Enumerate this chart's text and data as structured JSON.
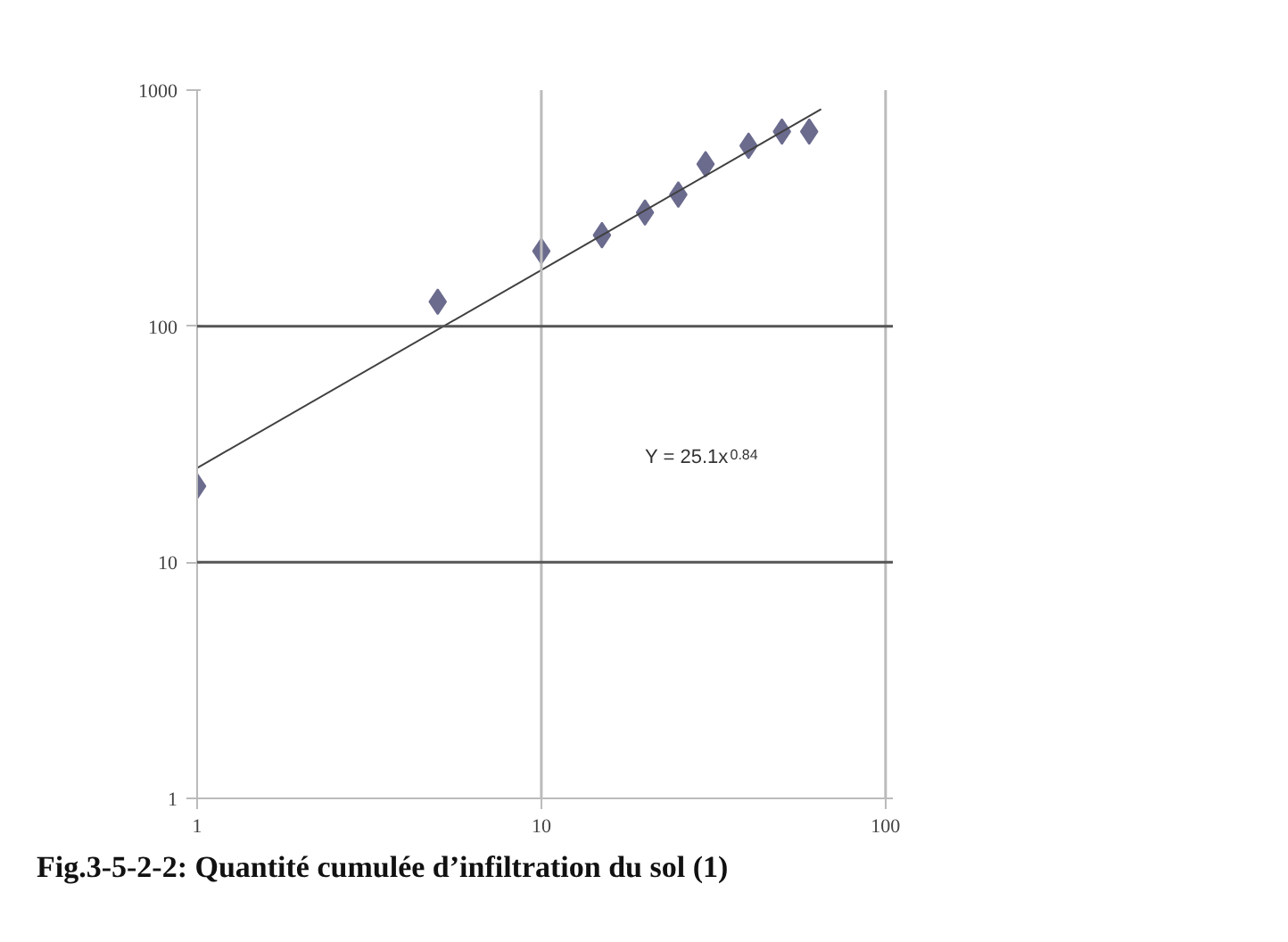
{
  "chart_data": {
    "type": "scatter",
    "title": "Fig.3-5-2-2: Quantité cumulée d’infiltration du sol (1)",
    "log": "xy",
    "marker": "diamond",
    "ref_lines": [
      {
        "axis": "x",
        "value": 10,
        "color": "#bbbbbb"
      },
      {
        "axis": "x",
        "value": 100,
        "color": "#bbbbbb"
      },
      {
        "axis": "y",
        "value": 10,
        "color": "#555555"
      },
      {
        "axis": "y",
        "value": 100,
        "color": "#555555"
      }
    ],
    "xlim": [
      1,
      105
    ],
    "xticks": [
      1,
      10,
      100
    ],
    "ylim": [
      1,
      1000
    ],
    "yticks": [
      1,
      10,
      100,
      1000
    ],
    "annotations": [
      "Y = 25.1x$^{0.84}$"
    ],
    "series": [
      {
        "color": "#6b6b8e",
        "x": [
          1,
          5,
          10,
          15,
          20,
          25,
          30,
          40,
          50,
          60
        ],
        "values": [
          21,
          127,
          208,
          243,
          303,
          361,
          486,
          581,
          667,
          667
        ]
      },
      {
        "type": "line",
        "color": "#404040",
        "marker": "none",
        "x": [
          1,
          65
        ],
        "values": [
          25.1,
          830
        ]
      }
    ]
  }
}
